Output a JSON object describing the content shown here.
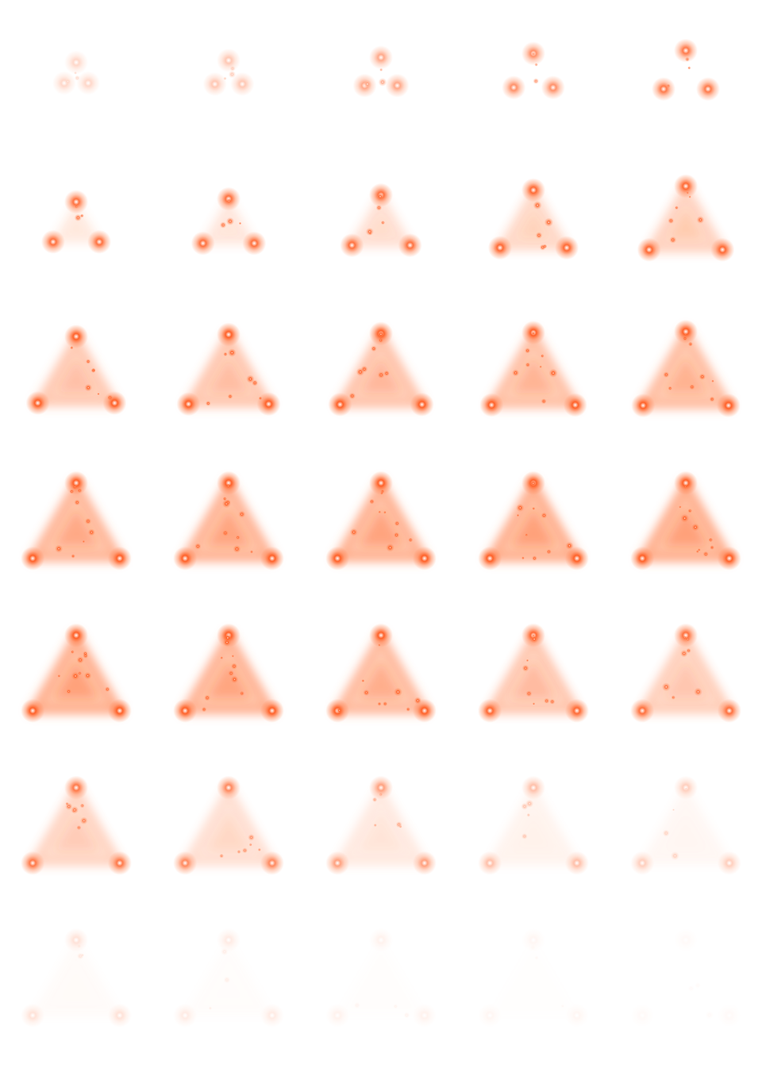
{
  "sprite_sheet": {
    "columns": 5,
    "rows": 7,
    "colors": {
      "glow": "#ff7a45",
      "core": "#ff5a1f",
      "fill": "#ffb08a",
      "background": "#ffffff"
    },
    "frames": [
      {
        "spread": 0.12,
        "opacity": 0.25,
        "fill": 0.0
      },
      {
        "spread": 0.16,
        "opacity": 0.35,
        "fill": 0.0
      },
      {
        "spread": 0.22,
        "opacity": 0.55,
        "fill": 0.0
      },
      {
        "spread": 0.3,
        "opacity": 0.7,
        "fill": 0.0
      },
      {
        "spread": 0.36,
        "opacity": 0.85,
        "fill": 0.0
      },
      {
        "spread": 0.38,
        "opacity": 0.9,
        "fill": 0.05
      },
      {
        "spread": 0.44,
        "opacity": 0.9,
        "fill": 0.1
      },
      {
        "spread": 0.52,
        "opacity": 0.9,
        "fill": 0.2
      },
      {
        "spread": 0.62,
        "opacity": 0.95,
        "fill": 0.3
      },
      {
        "spread": 0.7,
        "opacity": 0.95,
        "fill": 0.4
      },
      {
        "spread": 0.74,
        "opacity": 1.0,
        "fill": 0.5
      },
      {
        "spread": 0.78,
        "opacity": 1.0,
        "fill": 0.55
      },
      {
        "spread": 0.8,
        "opacity": 1.0,
        "fill": 0.6
      },
      {
        "spread": 0.82,
        "opacity": 1.0,
        "fill": 0.65
      },
      {
        "spread": 0.84,
        "opacity": 1.0,
        "fill": 0.7
      },
      {
        "spread": 0.86,
        "opacity": 1.0,
        "fill": 0.8
      },
      {
        "spread": 0.86,
        "opacity": 1.0,
        "fill": 0.85
      },
      {
        "spread": 0.86,
        "opacity": 1.0,
        "fill": 0.88
      },
      {
        "spread": 0.86,
        "opacity": 1.0,
        "fill": 0.9
      },
      {
        "spread": 0.86,
        "opacity": 1.0,
        "fill": 0.92
      },
      {
        "spread": 0.86,
        "opacity": 1.0,
        "fill": 0.9
      },
      {
        "spread": 0.86,
        "opacity": 1.0,
        "fill": 0.85
      },
      {
        "spread": 0.86,
        "opacity": 1.0,
        "fill": 0.75
      },
      {
        "spread": 0.86,
        "opacity": 0.95,
        "fill": 0.6
      },
      {
        "spread": 0.86,
        "opacity": 0.9,
        "fill": 0.5
      },
      {
        "spread": 0.86,
        "opacity": 0.85,
        "fill": 0.45
      },
      {
        "spread": 0.86,
        "opacity": 0.75,
        "fill": 0.35
      },
      {
        "spread": 0.86,
        "opacity": 0.6,
        "fill": 0.25
      },
      {
        "spread": 0.86,
        "opacity": 0.4,
        "fill": 0.15
      },
      {
        "spread": 0.86,
        "opacity": 0.3,
        "fill": 0.1
      },
      {
        "spread": 0.86,
        "opacity": 0.18,
        "fill": 0.06
      },
      {
        "spread": 0.86,
        "opacity": 0.12,
        "fill": 0.04
      },
      {
        "spread": 0.86,
        "opacity": 0.08,
        "fill": 0.02
      },
      {
        "spread": 0.86,
        "opacity": 0.05,
        "fill": 0.01
      },
      {
        "spread": 0.86,
        "opacity": 0.03,
        "fill": 0.0
      }
    ]
  }
}
